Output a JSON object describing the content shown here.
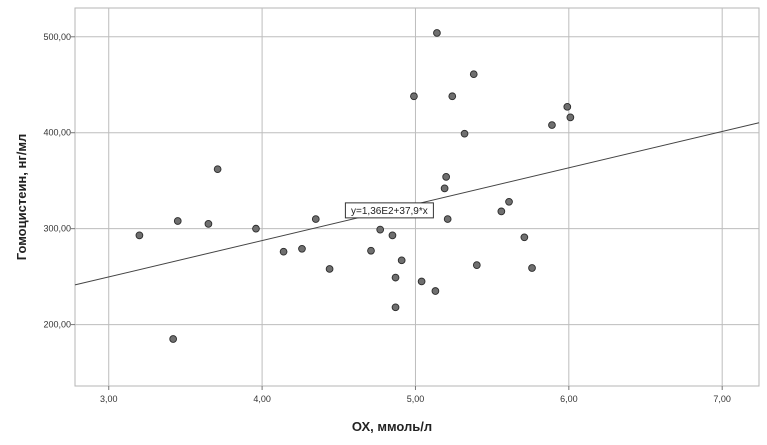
{
  "chart_data": {
    "type": "scatter",
    "xlabel": "ОХ, ммоль/л",
    "ylabel": "Гомоцистеин, нг/мл",
    "xlim": [
      2.78,
      7.24
    ],
    "ylim": [
      136,
      530
    ],
    "x_ticks": [
      3.0,
      4.0,
      5.0,
      6.0,
      7.0
    ],
    "x_tick_labels": [
      "3,00",
      "4,00",
      "5,00",
      "6,00",
      "7,00"
    ],
    "y_ticks": [
      200,
      300,
      400,
      500
    ],
    "y_tick_labels": [
      "200,00",
      "300,00",
      "400,00",
      "500,00"
    ],
    "grid": true,
    "fit_line": {
      "intercept": 136,
      "slope": 37.9,
      "label": "y=1,36E2+37,9*x"
    },
    "points": [
      {
        "x": 3.2,
        "y": 293
      },
      {
        "x": 3.42,
        "y": 185
      },
      {
        "x": 3.45,
        "y": 308
      },
      {
        "x": 3.65,
        "y": 305
      },
      {
        "x": 3.71,
        "y": 362
      },
      {
        "x": 3.96,
        "y": 300
      },
      {
        "x": 4.14,
        "y": 276
      },
      {
        "x": 4.26,
        "y": 279
      },
      {
        "x": 4.35,
        "y": 310
      },
      {
        "x": 4.44,
        "y": 258
      },
      {
        "x": 4.71,
        "y": 277
      },
      {
        "x": 4.77,
        "y": 299
      },
      {
        "x": 4.85,
        "y": 293
      },
      {
        "x": 4.87,
        "y": 249
      },
      {
        "x": 4.87,
        "y": 218
      },
      {
        "x": 4.91,
        "y": 267
      },
      {
        "x": 4.99,
        "y": 438
      },
      {
        "x": 5.04,
        "y": 245
      },
      {
        "x": 5.13,
        "y": 235
      },
      {
        "x": 5.14,
        "y": 504
      },
      {
        "x": 5.19,
        "y": 342
      },
      {
        "x": 5.2,
        "y": 354
      },
      {
        "x": 5.21,
        "y": 310
      },
      {
        "x": 5.24,
        "y": 438
      },
      {
        "x": 5.32,
        "y": 399
      },
      {
        "x": 5.38,
        "y": 461
      },
      {
        "x": 5.4,
        "y": 262
      },
      {
        "x": 5.56,
        "y": 318
      },
      {
        "x": 5.61,
        "y": 328
      },
      {
        "x": 5.71,
        "y": 291
      },
      {
        "x": 5.76,
        "y": 259
      },
      {
        "x": 5.89,
        "y": 408
      },
      {
        "x": 5.99,
        "y": 427
      },
      {
        "x": 6.01,
        "y": 416
      }
    ]
  }
}
